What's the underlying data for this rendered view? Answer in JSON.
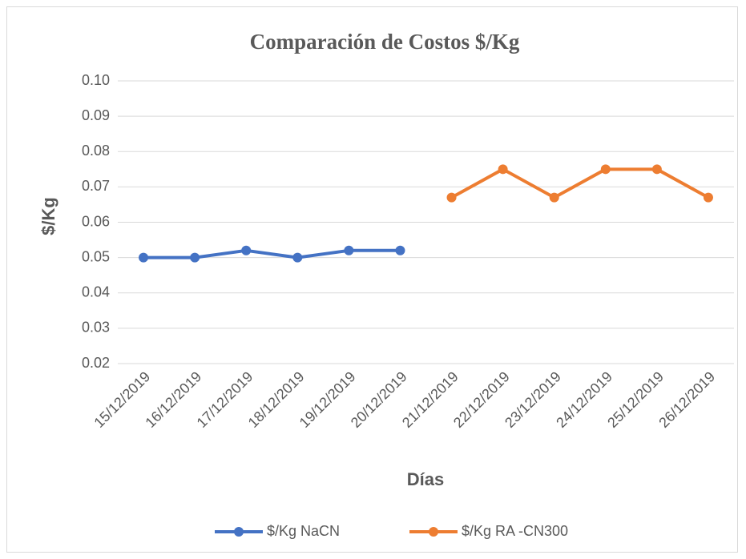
{
  "chart_data": {
    "type": "line",
    "title": "Comparación de Costos $/Kg",
    "x_label": "Días",
    "y_label": "$/Kg",
    "categories": [
      "15/12/2019",
      "16/12/2019",
      "17/12/2019",
      "18/12/2019",
      "19/12/2019",
      "20/12/2019",
      "21/12/2019",
      "22/12/2019",
      "23/12/2019",
      "24/12/2019",
      "25/12/2019",
      "26/12/2019"
    ],
    "series": [
      {
        "name": "$/Kg NaCN",
        "color": "#4472c4",
        "values": [
          0.05,
          0.05,
          0.052,
          0.05,
          0.052,
          0.052,
          null,
          null,
          null,
          null,
          null,
          null
        ]
      },
      {
        "name": "$/Kg RA -CN300",
        "color": "#ed7d31",
        "values": [
          null,
          null,
          null,
          null,
          null,
          null,
          0.067,
          0.075,
          0.067,
          0.075,
          0.075,
          0.067
        ]
      }
    ],
    "ylim": [
      0.02,
      0.1
    ],
    "yticks": [
      0.02,
      0.03,
      0.04,
      0.05,
      0.06,
      0.07,
      0.08,
      0.09,
      {
        "value": 0.1,
        "label": "0.10"
      }
    ],
    "grid": true,
    "legend": "bottom"
  }
}
